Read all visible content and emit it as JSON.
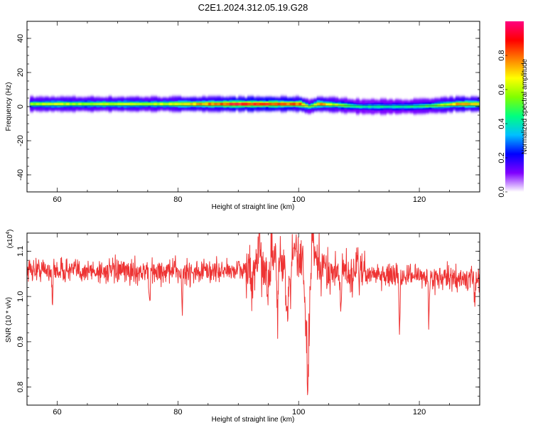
{
  "title": "C2E1.2024.312.05.19.G28",
  "chart_data": [
    {
      "type": "heatmap",
      "xlabel": "Height of straight line (km)",
      "ylabel": "Frequency (Hz)",
      "xlim": [
        55,
        130
      ],
      "ylim": [
        -50,
        50
      ],
      "xticks": [
        60,
        80,
        100,
        120
      ],
      "yticks": [
        -40,
        -20,
        0,
        20,
        40
      ],
      "ytick_labels": [
        "-40",
        "-20",
        "0",
        "20",
        "40"
      ],
      "colorbar": {
        "label": "Normalized spectral amplitude",
        "range": [
          0,
          1
        ],
        "ticks": [
          "0.0",
          "0.2",
          "0.4",
          "0.6",
          "0.8"
        ],
        "tick_values": [
          0,
          0.2,
          0.4,
          0.6,
          0.8
        ],
        "colors": [
          "#ffffff",
          "#8000ff",
          "#0000ff",
          "#00c0ff",
          "#00ff80",
          "#80ff00",
          "#ffff00",
          "#ff8000",
          "#ff0000",
          "#ff0080"
        ]
      },
      "ridge": {
        "x": [
          55.5,
          60,
          65,
          70,
          75,
          80,
          85,
          90,
          95,
          97,
          100,
          101.5,
          103,
          106,
          110,
          114,
          118,
          122,
          126,
          130
        ],
        "y": [
          1.5,
          1.5,
          1.5,
          1.5,
          1.5,
          1.5,
          1.5,
          1.5,
          1.5,
          1.5,
          1.5,
          0.0,
          1.5,
          1.0,
          0.0,
          0.0,
          0.0,
          0.5,
          1.5,
          1.5
        ],
        "level": [
          0.6,
          0.65,
          0.6,
          0.65,
          0.6,
          0.7,
          0.8,
          0.95,
          0.9,
          0.85,
          0.85,
          0.5,
          0.8,
          0.6,
          0.45,
          0.45,
          0.45,
          0.55,
          0.75,
          0.75
        ]
      }
    },
    {
      "type": "line",
      "xlabel": "Height of straight line (km)",
      "ylabel": "SNR (10 * v/v)",
      "scale_label": "(x10",
      "scale_exp": "4",
      "scale_close": ")",
      "xlim": [
        55,
        130
      ],
      "ylim": [
        0.76,
        1.14
      ],
      "xticks": [
        60,
        80,
        100,
        120
      ],
      "yticks": [
        "0.8",
        "0.9",
        "1.0",
        "1.1"
      ],
      "ytick_values": [
        0.8,
        0.9,
        1.0,
        1.1
      ],
      "color": "#ee3333",
      "baseline": [
        [
          55,
          1.06
        ],
        [
          70,
          1.055
        ],
        [
          85,
          1.055
        ],
        [
          92,
          1.06
        ],
        [
          96,
          1.08
        ],
        [
          100,
          1.08
        ],
        [
          104,
          1.06
        ],
        [
          110,
          1.05
        ],
        [
          120,
          1.045
        ],
        [
          130,
          1.035
        ]
      ],
      "spikes": [
        {
          "x": 59.2,
          "y": 0.965,
          "w": 0.2
        },
        {
          "x": 75.3,
          "y": 0.945,
          "w": 0.2
        },
        {
          "x": 80.7,
          "y": 0.94,
          "w": 0.2
        },
        {
          "x": 92.2,
          "y": 0.975,
          "w": 0.3
        },
        {
          "x": 95.0,
          "y": 0.98,
          "w": 0.5
        },
        {
          "x": 96.5,
          "y": 0.92,
          "w": 0.3
        },
        {
          "x": 98.2,
          "y": 0.93,
          "w": 0.6
        },
        {
          "x": 101.5,
          "y": 0.76,
          "w": 0.7
        },
        {
          "x": 107.0,
          "y": 0.98,
          "w": 0.3
        },
        {
          "x": 116.7,
          "y": 0.872,
          "w": 0.2
        },
        {
          "x": 121.6,
          "y": 0.915,
          "w": 0.2
        },
        {
          "x": 129.2,
          "y": 0.99,
          "w": 0.2
        }
      ],
      "peaks": [
        {
          "x": 93.5,
          "y": 1.12,
          "w": 0.4
        },
        {
          "x": 95.5,
          "y": 1.12,
          "w": 0.4
        },
        {
          "x": 99.5,
          "y": 1.12,
          "w": 0.4
        },
        {
          "x": 102.3,
          "y": 1.135,
          "w": 0.5
        },
        {
          "x": 109.8,
          "y": 1.095,
          "w": 0.3
        }
      ]
    }
  ]
}
